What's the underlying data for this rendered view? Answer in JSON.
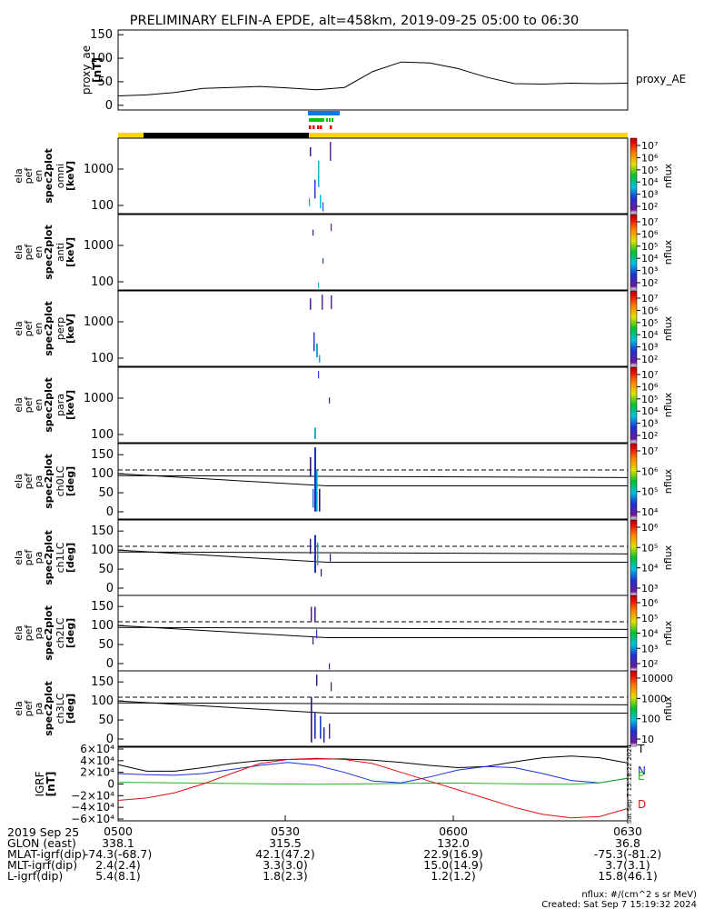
{
  "title": "PRELIMINARY ELFIN-A EPDE, alt=458km, 2019-09-25 05:00 to 06:30",
  "colors": {
    "ae_line": "#000000",
    "ticks_blue": "#0a79e8",
    "ticks_green": "#10c010",
    "ticks_red": "#e00000",
    "day_bar": "#ffd400",
    "night_bar": "#000000",
    "grf_T": "#000000",
    "grf_N": "#1a2ee0",
    "grf_E": "#20b020",
    "grf_D": "#e01010"
  },
  "chart_data": [
    {
      "id": "proxy_ae",
      "type": "line",
      "ylabel": [
        "proxy_ae",
        "[nT]"
      ],
      "yticks": [
        "150",
        "100",
        "50",
        "0"
      ],
      "ylim": [
        -10,
        160
      ],
      "legend": "proxy_AE",
      "x": [
        "05:00",
        "05:05",
        "05:10",
        "05:15",
        "05:20",
        "05:25",
        "05:30",
        "05:35",
        "05:40",
        "05:45",
        "05:50",
        "05:55",
        "06:00",
        "06:05",
        "06:10",
        "06:15",
        "06:20",
        "06:25",
        "06:30"
      ],
      "values": [
        20,
        22,
        27,
        36,
        38,
        40,
        37,
        33,
        38,
        72,
        92,
        90,
        78,
        60,
        46,
        45,
        47,
        46,
        47
      ]
    },
    {
      "id": "spec_energy",
      "type": "heatmap",
      "panels": [
        {
          "ylabel": [
            "ela",
            "pef",
            "en",
            "spec2plot",
            "omni",
            "[keV]"
          ],
          "yticks": [
            "1000",
            "100"
          ]
        },
        {
          "ylabel": [
            "ela",
            "pef",
            "en",
            "spec2plot",
            "anti",
            "[keV]"
          ],
          "yticks": [
            "1000",
            "100"
          ]
        },
        {
          "ylabel": [
            "ela",
            "pef",
            "en",
            "spec2plot",
            "perp",
            "[keV]"
          ],
          "yticks": [
            "1000",
            "100"
          ]
        },
        {
          "ylabel": [
            "ela",
            "pef",
            "en",
            "spec2plot",
            "para",
            "[keV]"
          ],
          "yticks": [
            "1000",
            "100"
          ]
        }
      ],
      "colorbar": {
        "label": "nflux",
        "ticks": [
          "10⁷",
          "10⁶",
          "10⁵",
          "10⁴",
          "10³",
          "10²"
        ]
      }
    },
    {
      "id": "spec_pitch",
      "type": "heatmap",
      "panels": [
        {
          "ylabel": [
            "ela",
            "pef",
            "pa",
            "spec2plot",
            "ch0LC",
            "[deg]"
          ],
          "yticks": [
            "150",
            "100",
            "50",
            "0"
          ],
          "colorbar": [
            "10⁷",
            "10⁶",
            "10⁵",
            "10⁴"
          ]
        },
        {
          "ylabel": [
            "ela",
            "pef",
            "pa",
            "spec2plot",
            "ch1LC",
            "[deg]"
          ],
          "yticks": [
            "150",
            "100",
            "50",
            "0"
          ],
          "colorbar": [
            "10⁶",
            "10⁵",
            "10⁴",
            "10³"
          ]
        },
        {
          "ylabel": [
            "ela",
            "pef",
            "pa",
            "spec2plot",
            "ch2LC",
            "[deg]"
          ],
          "yticks": [
            "150",
            "100",
            "50",
            "0"
          ],
          "colorbar": [
            "10⁶",
            "10⁵",
            "10⁴",
            "10³",
            "10²"
          ]
        },
        {
          "ylabel": [
            "ela",
            "pef",
            "pa",
            "spec2plot",
            "ch3LC",
            "[deg]"
          ],
          "yticks": [
            "150",
            "100",
            "50",
            "0"
          ],
          "colorbar": [
            "10000",
            "1000",
            "100",
            "10"
          ]
        }
      ],
      "colorbar_label": "nflux"
    },
    {
      "id": "igrf",
      "type": "line",
      "ylabel": [
        "IGRF",
        "[nT]"
      ],
      "yticks": [
        "6×10⁴",
        "4×10⁴",
        "2×10⁴",
        "0",
        "−2×10⁴",
        "−4×10⁴",
        "−6×10⁴"
      ],
      "ylim": [
        -60000,
        60000
      ],
      "x": [
        "05:00",
        "05:05",
        "05:10",
        "05:15",
        "05:20",
        "05:25",
        "05:30",
        "05:35",
        "05:40",
        "05:45",
        "05:50",
        "05:55",
        "06:00",
        "06:05",
        "06:10",
        "06:15",
        "06:20",
        "06:25",
        "06:30"
      ],
      "series": [
        {
          "name": "T",
          "values": [
            33000,
            22000,
            22000,
            28000,
            35000,
            40000,
            42000,
            43000,
            43000,
            41000,
            37000,
            32000,
            28000,
            30000,
            38000,
            45000,
            48000,
            45000,
            36000
          ]
        },
        {
          "name": "N",
          "values": [
            18000,
            16000,
            15000,
            18000,
            25000,
            32000,
            37000,
            32000,
            20000,
            5000,
            2000,
            12000,
            24000,
            30000,
            28000,
            18000,
            6000,
            2000,
            10000
          ]
        },
        {
          "name": "E",
          "values": [
            3000,
            2500,
            2000,
            1500,
            1000,
            500,
            0,
            -500,
            0,
            500,
            1000,
            1500,
            1500,
            1000,
            500,
            0,
            -500,
            2000,
            10000
          ]
        },
        {
          "name": "D",
          "values": [
            -28000,
            -24000,
            -15000,
            0,
            18000,
            35000,
            42000,
            44000,
            42000,
            35000,
            20000,
            5000,
            -10000,
            -25000,
            -40000,
            -52000,
            -58000,
            -56000,
            -42000
          ]
        }
      ]
    }
  ],
  "created_vertical": "Sat Sep  7 15:18:22 2024",
  "x_ticks": [
    "0500",
    "0530",
    "0600",
    "0630"
  ],
  "footer": {
    "date": "2019 Sep 25",
    "rows": [
      {
        "label": "GLON (east)",
        "values": [
          "338.1",
          "315.5",
          "132.0",
          "36.8"
        ]
      },
      {
        "label": "MLAT-igrf(dip)",
        "values": [
          "-74.3(-68.7)",
          "42.1(47.2)",
          "22.9(16.9)",
          "-75.3(-81.2)"
        ]
      },
      {
        "label": "MLT-igrf(dip)",
        "values": [
          "2.4(2.4)",
          "3.3(3.0)",
          "15.0(14.9)",
          "3.7(3.1)"
        ]
      },
      {
        "label": "L-igrf(dip)",
        "values": [
          "5.4(8.1)",
          "1.8(2.3)",
          "1.2(1.2)",
          "15.8(46.1)"
        ]
      }
    ],
    "units": "nflux: #/(cm^2 s sr MeV)",
    "created": "Created: Sat Sep  7 15:19:32 2024"
  }
}
